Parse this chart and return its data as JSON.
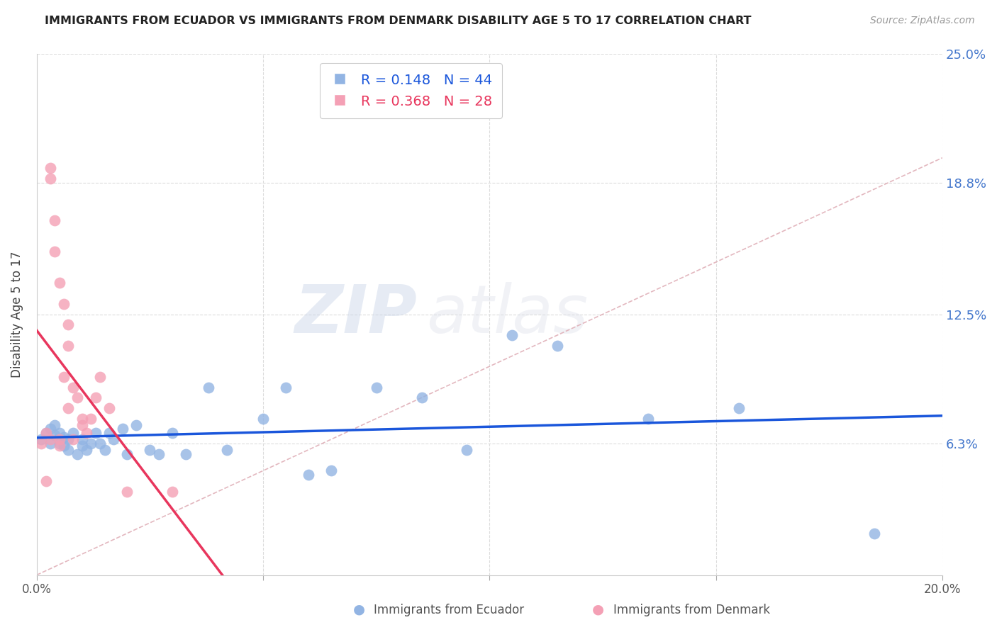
{
  "title": "IMMIGRANTS FROM ECUADOR VS IMMIGRANTS FROM DENMARK DISABILITY AGE 5 TO 17 CORRELATION CHART",
  "source": "Source: ZipAtlas.com",
  "ylabel": "Disability Age 5 to 17",
  "legend_label_blue": "Immigrants from Ecuador",
  "legend_label_pink": "Immigrants from Denmark",
  "r_blue": 0.148,
  "n_blue": 44,
  "r_pink": 0.368,
  "n_pink": 28,
  "xlim": [
    0,
    0.2
  ],
  "ylim": [
    0,
    0.25
  ],
  "yticks_right": [
    0.063,
    0.125,
    0.188,
    0.25
  ],
  "yticks_right_labels": [
    "6.3%",
    "12.5%",
    "18.8%",
    "25.0%"
  ],
  "xticks": [
    0.0,
    0.05,
    0.1,
    0.15,
    0.2
  ],
  "xticks_labels": [
    "0.0%",
    "",
    "",
    "",
    "20.0%"
  ],
  "color_blue": "#92b4e3",
  "color_pink": "#f4a0b5",
  "color_line_blue": "#1a56db",
  "color_line_pink": "#e8365d",
  "color_diag": "#e0b0b8",
  "background": "#ffffff",
  "watermark_zip": "ZIP",
  "watermark_atlas": "atlas",
  "ecuador_x": [
    0.001,
    0.002,
    0.003,
    0.003,
    0.004,
    0.004,
    0.005,
    0.005,
    0.006,
    0.006,
    0.007,
    0.007,
    0.008,
    0.009,
    0.01,
    0.01,
    0.011,
    0.012,
    0.013,
    0.014,
    0.015,
    0.016,
    0.017,
    0.019,
    0.02,
    0.022,
    0.025,
    0.027,
    0.03,
    0.033,
    0.038,
    0.042,
    0.05,
    0.055,
    0.06,
    0.065,
    0.075,
    0.085,
    0.095,
    0.105,
    0.115,
    0.135,
    0.155,
    0.185
  ],
  "ecuador_y": [
    0.065,
    0.068,
    0.063,
    0.07,
    0.067,
    0.072,
    0.063,
    0.068,
    0.062,
    0.066,
    0.065,
    0.06,
    0.068,
    0.058,
    0.065,
    0.062,
    0.06,
    0.063,
    0.068,
    0.063,
    0.06,
    0.068,
    0.065,
    0.07,
    0.058,
    0.072,
    0.06,
    0.058,
    0.068,
    0.058,
    0.09,
    0.06,
    0.075,
    0.09,
    0.048,
    0.05,
    0.09,
    0.085,
    0.06,
    0.115,
    0.11,
    0.075,
    0.08,
    0.02
  ],
  "denmark_x": [
    0.001,
    0.002,
    0.002,
    0.003,
    0.003,
    0.003,
    0.004,
    0.004,
    0.005,
    0.005,
    0.005,
    0.006,
    0.006,
    0.007,
    0.007,
    0.007,
    0.008,
    0.008,
    0.009,
    0.01,
    0.01,
    0.011,
    0.012,
    0.013,
    0.014,
    0.016,
    0.02,
    0.03
  ],
  "denmark_y": [
    0.063,
    0.068,
    0.045,
    0.19,
    0.195,
    0.065,
    0.155,
    0.17,
    0.14,
    0.065,
    0.062,
    0.13,
    0.095,
    0.12,
    0.08,
    0.11,
    0.09,
    0.065,
    0.085,
    0.075,
    0.072,
    0.068,
    0.075,
    0.085,
    0.095,
    0.08,
    0.04,
    0.04
  ]
}
